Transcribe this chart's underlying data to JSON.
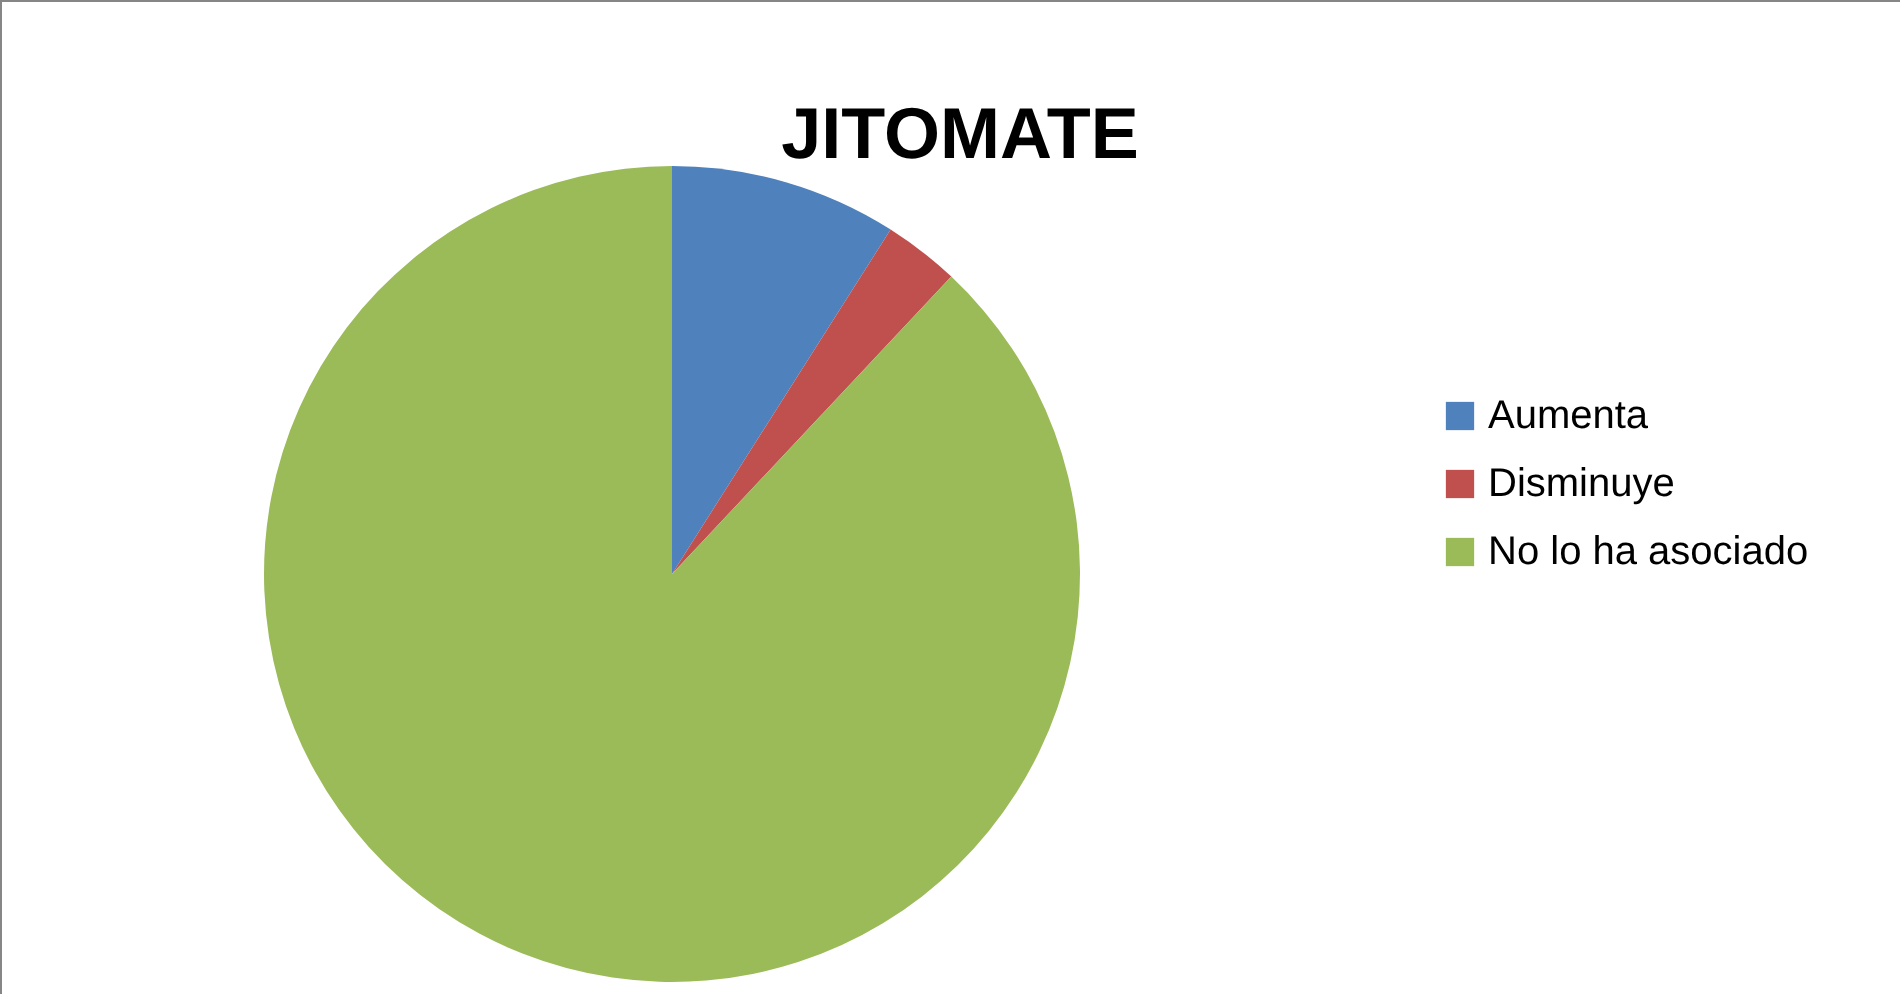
{
  "chart_data": {
    "type": "pie",
    "title": "JITOMATE",
    "categories": [
      "Aumenta",
      "Disminuye",
      "No lo ha asociado"
    ],
    "values": [
      9,
      3,
      88
    ],
    "colors": [
      "#4f81bd",
      "#c0504d",
      "#9bbb59"
    ],
    "legend": "right"
  }
}
